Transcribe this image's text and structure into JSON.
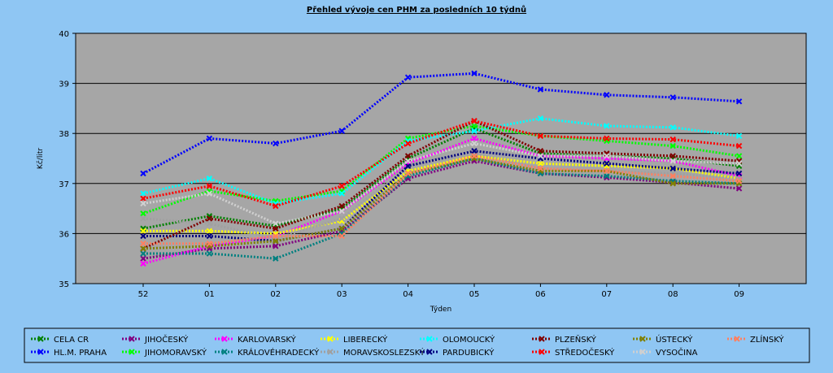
{
  "chart_data": {
    "type": "line",
    "title": "Přehled vývoje cen PHM za posledních 10 týdnů",
    "xlabel": "Týden",
    "ylabel": "Kč/litr",
    "ylim": [
      35,
      40
    ],
    "yticks": [
      "35",
      "36",
      "37",
      "38",
      "39",
      "40"
    ],
    "categories": [
      "52",
      "01",
      "02",
      "03",
      "04",
      "05",
      "06",
      "07",
      "08",
      "09"
    ],
    "legend_position": "bottom",
    "series": [
      {
        "name": "CELA CR",
        "color": "#008000",
        "values": [
          36.1,
          36.35,
          36.15,
          36.5,
          37.5,
          38.1,
          37.6,
          37.55,
          37.5,
          37.35
        ]
      },
      {
        "name": "HL.M. PRAHA",
        "color": "#0000ff",
        "values": [
          37.2,
          37.9,
          37.8,
          38.05,
          39.12,
          39.2,
          38.88,
          38.77,
          38.72,
          38.64
        ]
      },
      {
        "name": "JIHOČESKÝ",
        "color": "#800080",
        "values": [
          35.5,
          35.7,
          35.75,
          36.05,
          37.1,
          37.45,
          37.2,
          37.12,
          37.02,
          36.9
        ]
      },
      {
        "name": "JIHOMORAVSKÝ",
        "color": "#00ff00",
        "values": [
          36.4,
          36.85,
          36.65,
          36.85,
          37.9,
          38.15,
          37.95,
          37.85,
          37.75,
          37.55
        ]
      },
      {
        "name": "KARLOVARSKÝ",
        "color": "#ff00ff",
        "values": [
          35.4,
          35.75,
          35.95,
          36.45,
          37.4,
          37.9,
          37.55,
          37.5,
          37.45,
          37.15
        ]
      },
      {
        "name": "KRÁLOVÉHRADECKÝ",
        "color": "#008080",
        "values": [
          35.6,
          35.6,
          35.5,
          36.0,
          37.15,
          37.5,
          37.2,
          37.15,
          37.05,
          37.0
        ]
      },
      {
        "name": "LIBERECKÝ",
        "color": "#ffff00",
        "values": [
          36.05,
          36.05,
          36.0,
          36.25,
          37.25,
          37.55,
          37.4,
          37.35,
          37.3,
          37.1
        ]
      },
      {
        "name": "MORAVSKOSLEZSKÝ",
        "color": "#a0a0a0",
        "values": [
          36.3,
          36.2,
          35.9,
          36.3,
          37.35,
          37.6,
          37.3,
          37.25,
          37.2,
          37.1
        ]
      },
      {
        "name": "OLOMOUCKÝ",
        "color": "#00ffff",
        "values": [
          36.8,
          37.1,
          36.6,
          36.8,
          37.85,
          38.05,
          38.3,
          38.15,
          38.12,
          37.95
        ]
      },
      {
        "name": "PARDUBICKÝ",
        "color": "#000080",
        "values": [
          35.95,
          35.95,
          35.85,
          36.1,
          37.35,
          37.65,
          37.5,
          37.4,
          37.3,
          37.2
        ]
      },
      {
        "name": "PLZEŇSKÝ",
        "color": "#800000",
        "values": [
          35.7,
          36.3,
          36.1,
          36.55,
          37.55,
          38.25,
          37.65,
          37.6,
          37.55,
          37.45
        ]
      },
      {
        "name": "STŘEDOČESKÝ",
        "color": "#ff0000",
        "values": [
          36.7,
          36.95,
          36.55,
          36.95,
          37.8,
          38.25,
          37.95,
          37.9,
          37.88,
          37.75
        ]
      },
      {
        "name": "ÚSTECKÝ",
        "color": "#808000",
        "values": [
          35.7,
          35.75,
          35.85,
          36.1,
          37.2,
          37.5,
          37.25,
          37.25,
          37.0,
          37.0
        ]
      },
      {
        "name": "VYSOČINA",
        "color": "#d0d0d0",
        "values": [
          36.6,
          36.8,
          36.2,
          36.45,
          37.45,
          37.8,
          37.55,
          37.55,
          37.45,
          37.4
        ]
      },
      {
        "name": "ZLÍNSKÝ",
        "color": "#ff8060",
        "values": [
          35.8,
          35.8,
          35.95,
          35.95,
          37.2,
          37.55,
          37.3,
          37.25,
          37.15,
          37.05
        ]
      }
    ]
  }
}
